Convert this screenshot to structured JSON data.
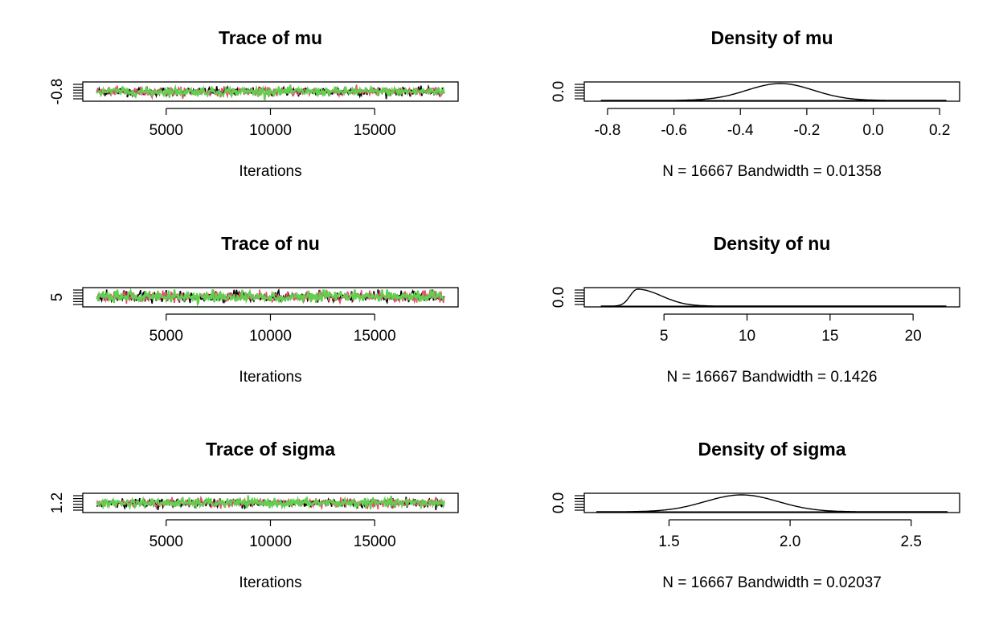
{
  "colors": {
    "chain_1": "#000000",
    "chain_2": "#DF536B",
    "chain_3": "#61D04F",
    "frame": "#000000",
    "background": "#ffffff"
  },
  "chart_data": [
    {
      "type": "line",
      "kind": "trace",
      "title": "Trace of mu",
      "xlabel": "Iterations",
      "ylabel": "",
      "x_range": [
        1667,
        18333
      ],
      "xlim": [
        1000,
        19000
      ],
      "x_ticks": [
        5000,
        10000,
        15000
      ],
      "x_tick_labels": [
        "5000",
        "10000",
        "15000"
      ],
      "y_ticks": [
        -0.8
      ],
      "y_tick_labels": [
        "-0.8"
      ],
      "series_center": -0.3,
      "series_spread": 0.1,
      "series": [
        {
          "color_key": "chain_1"
        },
        {
          "color_key": "chain_2"
        },
        {
          "color_key": "chain_3"
        }
      ]
    },
    {
      "type": "line",
      "kind": "density",
      "title": "Density of mu",
      "xlabel": "N = 16667   Bandwidth = 0.01358",
      "ylabel": "",
      "xlim": [
        -0.87,
        0.26
      ],
      "x_ticks": [
        -0.8,
        -0.6,
        -0.4,
        -0.2,
        0.0,
        0.2
      ],
      "x_tick_labels": [
        "-0.8",
        "-0.6",
        "-0.4",
        "-0.2",
        "0.0",
        "0.2"
      ],
      "y_ticks": [
        0.0
      ],
      "y_tick_labels": [
        "0.0"
      ],
      "x_range": [
        -0.82,
        0.22
      ],
      "peak_x": -0.28,
      "spread": 0.1,
      "skew": 0
    },
    {
      "type": "line",
      "kind": "trace",
      "title": "Trace of nu",
      "xlabel": "Iterations",
      "ylabel": "",
      "x_range": [
        1667,
        18333
      ],
      "xlim": [
        1000,
        19000
      ],
      "x_ticks": [
        5000,
        10000,
        15000
      ],
      "x_tick_labels": [
        "5000",
        "10000",
        "15000"
      ],
      "y_ticks": [
        5
      ],
      "y_tick_labels": [
        "5"
      ],
      "series_center": 4,
      "series_spread": 1.2,
      "series": [
        {
          "color_key": "chain_1"
        },
        {
          "color_key": "chain_2"
        },
        {
          "color_key": "chain_3"
        }
      ]
    },
    {
      "type": "line",
      "kind": "density",
      "title": "Density of nu",
      "xlabel": "N = 16667   Bandwidth = 0.1426",
      "ylabel": "",
      "xlim": [
        0.2,
        22.8
      ],
      "x_ticks": [
        5,
        10,
        15,
        20
      ],
      "x_tick_labels": [
        "5",
        "10",
        "15",
        "20"
      ],
      "y_ticks": [
        0.0
      ],
      "y_tick_labels": [
        "0.0"
      ],
      "x_range": [
        1.2,
        22.0
      ],
      "peak_x": 3.4,
      "spread": 0.8,
      "skew": 1
    },
    {
      "type": "line",
      "kind": "trace",
      "title": "Trace of sigma",
      "xlabel": "Iterations",
      "ylabel": "",
      "x_range": [
        1667,
        18333
      ],
      "xlim": [
        1000,
        19000
      ],
      "x_ticks": [
        5000,
        10000,
        15000
      ],
      "x_tick_labels": [
        "5000",
        "10000",
        "15000"
      ],
      "y_ticks": [
        1.2
      ],
      "y_tick_labels": [
        "1.2"
      ],
      "series_center": 1.8,
      "series_spread": 0.15,
      "series": [
        {
          "color_key": "chain_1"
        },
        {
          "color_key": "chain_2"
        },
        {
          "color_key": "chain_3"
        }
      ]
    },
    {
      "type": "line",
      "kind": "density",
      "title": "Density of sigma",
      "xlabel": "N = 16667   Bandwidth = 0.02037",
      "ylabel": "",
      "xlim": [
        1.15,
        2.7
      ],
      "x_ticks": [
        1.5,
        2.0,
        2.5
      ],
      "x_tick_labels": [
        "1.5",
        "2.0",
        "2.5"
      ],
      "y_ticks": [
        0.0
      ],
      "y_tick_labels": [
        "0.0"
      ],
      "x_range": [
        1.2,
        2.65
      ],
      "peak_x": 1.8,
      "spread": 0.15,
      "skew": 0
    }
  ]
}
